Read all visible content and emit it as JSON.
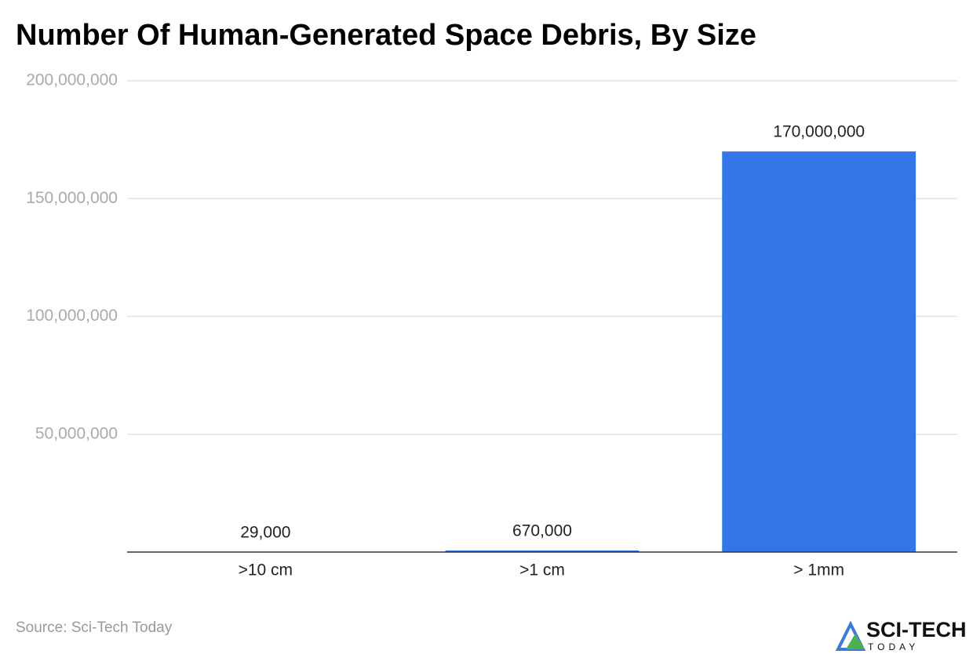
{
  "chart_data": {
    "type": "bar",
    "title": "Number Of Human-Generated Space Debris, By Size",
    "categories": [
      ">10 cm",
      ">1 cm",
      "> 1mm"
    ],
    "values": [
      29000,
      670000,
      170000000
    ],
    "value_labels": [
      "29,000",
      "670,000",
      "170,000,000"
    ],
    "color": "#3475e8",
    "ylim": [
      0,
      200000000
    ],
    "yticks": [
      {
        "value": 50000000,
        "label": "50,000,000"
      },
      {
        "value": 100000000,
        "label": "100,000,000"
      },
      {
        "value": 150000000,
        "label": "150,000,000"
      },
      {
        "value": 200000000,
        "label": "200,000,000"
      }
    ],
    "grid": true,
    "source": "Source: Sci-Tech Today"
  },
  "logo": {
    "name": "SCI-TECH",
    "tagline": "TODAY"
  }
}
